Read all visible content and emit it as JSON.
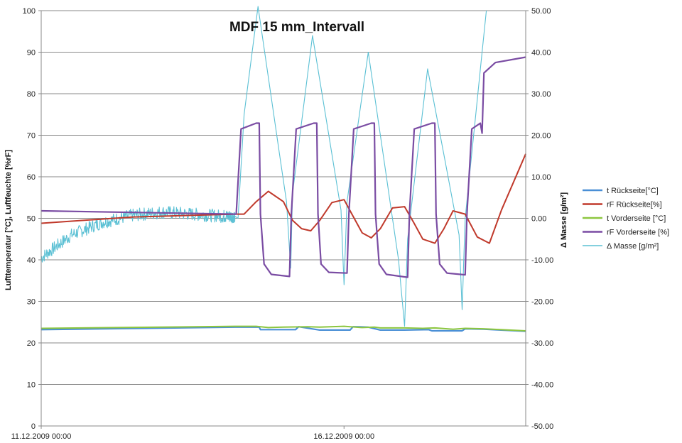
{
  "chart_data": {
    "type": "line",
    "title": "MDF 15 mm_Intervall",
    "ylabel": "Lufttemperatur [°C], Luftfeuchte [%rF]",
    "y2label": "Δ Masse [g/m²]",
    "ylim": [
      0,
      100
    ],
    "y2lim": [
      -50,
      50
    ],
    "xlim": [
      0,
      8
    ],
    "grid": true,
    "legend_position": "right",
    "x_ticks": [
      {
        "x": 0,
        "label": "11.12.2009 00:00"
      },
      {
        "x": 5,
        "label": "16.12.2009 00:00"
      }
    ],
    "y_ticks": [
      "0",
      "10",
      "20",
      "30",
      "40",
      "50",
      "60",
      "70",
      "80",
      "90",
      "100"
    ],
    "y2_ticks": [
      "-50.00",
      "-40.00",
      "-30.00",
      "-20.00",
      "-10.00",
      "0.00",
      "10.00",
      "20.00",
      "30.00",
      "40.00",
      "50.00"
    ],
    "series": [
      {
        "name": "t Rückseite[°C]",
        "axis": "left",
        "color": "#4a8fd6",
        "width": 2.2,
        "x": [
          0,
          3.2,
          3.6,
          3.62,
          4.0,
          4.2,
          4.25,
          4.6,
          5.1,
          5.15,
          5.4,
          5.6,
          5.62,
          6.0,
          6.4,
          6.45,
          6.75,
          6.95,
          7.0,
          7.3,
          8.0
        ],
        "y": [
          23.2,
          23.8,
          23.8,
          23.2,
          23.2,
          23.2,
          23.9,
          23.1,
          23.1,
          23.9,
          23.8,
          23.1,
          23.1,
          23.1,
          23.2,
          22.9,
          22.9,
          22.9,
          23.4,
          23.3,
          22.8
        ]
      },
      {
        "name": "rF Rückseite[%]",
        "axis": "left",
        "color": "#c0392b",
        "width": 2,
        "x": [
          0,
          1.5,
          3.2,
          3.35,
          3.55,
          3.75,
          4.0,
          4.15,
          4.3,
          4.45,
          4.6,
          4.8,
          5.0,
          5.15,
          5.3,
          5.45,
          5.6,
          5.8,
          6.0,
          6.15,
          6.3,
          6.5,
          6.65,
          6.8,
          7.0,
          7.2,
          7.4,
          7.6,
          8.0
        ],
        "y": [
          48.8,
          50.3,
          51.0,
          51.0,
          54.0,
          56.5,
          54.0,
          49.5,
          47.5,
          47.0,
          49.5,
          53.8,
          54.5,
          50.5,
          46.5,
          45.3,
          47.5,
          52.5,
          52.8,
          49.0,
          45.0,
          44.0,
          47.5,
          51.8,
          51.0,
          45.5,
          44.0,
          52.0,
          65.5
        ]
      },
      {
        "name": "t Vorderseite [°C]",
        "axis": "left",
        "color": "#8cc63f",
        "width": 2,
        "x": [
          0,
          2.0,
          3.2,
          3.55,
          3.75,
          4.0,
          4.4,
          4.6,
          5.0,
          5.3,
          5.5,
          5.6,
          6.0,
          6.3,
          6.5,
          6.8,
          7.0,
          7.3,
          8.0
        ],
        "y": [
          23.5,
          23.8,
          24.0,
          24.0,
          23.7,
          23.8,
          23.9,
          23.8,
          24.0,
          23.7,
          23.8,
          23.6,
          23.6,
          23.5,
          23.6,
          23.3,
          23.5,
          23.4,
          22.9
        ]
      },
      {
        "name": "rF Vorderseite [%]",
        "axis": "left",
        "color": "#7a4ca3",
        "width": 2.2,
        "x": [
          0,
          3.2,
          3.22,
          3.3,
          3.55,
          3.6,
          3.62,
          3.68,
          3.8,
          4.1,
          4.13,
          4.21,
          4.5,
          4.55,
          4.57,
          4.62,
          4.75,
          5.05,
          5.08,
          5.16,
          5.45,
          5.5,
          5.52,
          5.58,
          5.7,
          6.05,
          6.08,
          6.16,
          6.45,
          6.5,
          6.52,
          6.58,
          6.7,
          7.0,
          7.03,
          7.11,
          7.25,
          7.28,
          7.31,
          7.5,
          8.0
        ],
        "y": [
          51.8,
          51.0,
          51.0,
          71.5,
          72.9,
          72.9,
          51.0,
          39.0,
          36.5,
          36.0,
          51.0,
          71.5,
          72.9,
          72.9,
          51.0,
          39.0,
          37.0,
          36.8,
          51.0,
          71.5,
          72.9,
          72.9,
          51.0,
          39.0,
          36.5,
          35.8,
          51.0,
          71.5,
          72.9,
          72.9,
          51.0,
          39.0,
          36.8,
          36.4,
          51.0,
          71.5,
          72.9,
          70.5,
          85.0,
          87.5,
          88.8
        ]
      },
      {
        "name": "Δ Masse [g/m²]",
        "axis": "right",
        "color": "#5bc0d4",
        "width": 1.1,
        "noisy": true,
        "x": [
          0,
          0.5,
          1.0,
          1.5,
          2.0,
          2.5,
          3.0,
          3.2,
          3.25,
          3.35,
          3.58,
          4.05,
          4.12,
          4.15,
          4.48,
          4.95,
          5.0,
          5.05,
          5.4,
          5.9,
          6.0,
          6.05,
          6.38,
          6.9,
          6.95,
          7.0,
          7.35
        ],
        "y": [
          -9.5,
          -4.0,
          -1.0,
          0.7,
          1.5,
          1.0,
          0.5,
          0.5,
          0.0,
          25.0,
          51.0,
          4.0,
          -12.0,
          6.0,
          44.0,
          2.0,
          -16.0,
          4.0,
          40.0,
          -10.0,
          -26.0,
          -5.0,
          36.0,
          -4.0,
          -22.0,
          0.0,
          50.0
        ]
      }
    ]
  }
}
